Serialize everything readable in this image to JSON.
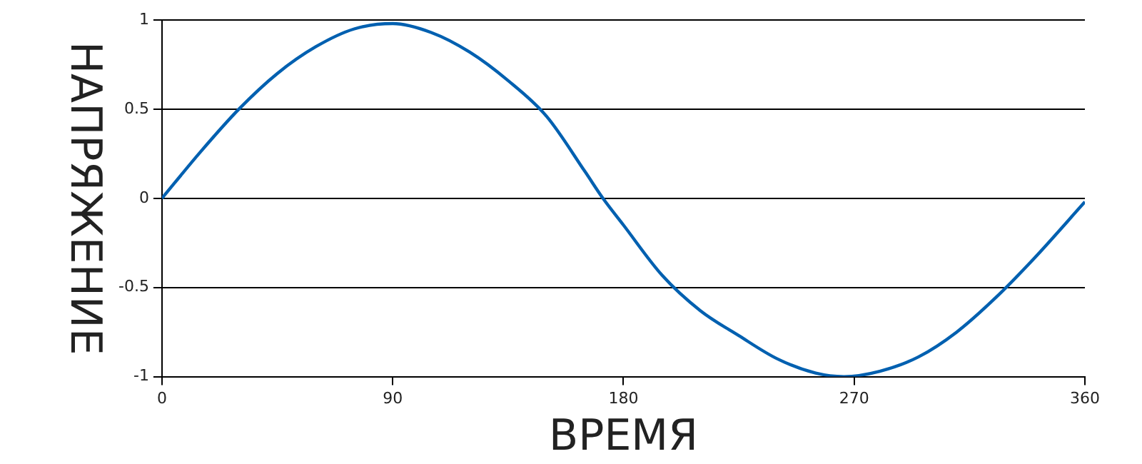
{
  "chart_data": {
    "type": "line",
    "xlabel": "ВРЕМЯ",
    "ylabel": "НАПРЯЖЕНИЕ",
    "x": [
      0,
      15,
      30,
      45,
      60,
      75,
      90,
      105,
      120,
      135,
      150,
      165,
      172,
      180,
      195,
      210,
      225,
      240,
      255,
      266,
      280,
      295,
      310,
      325,
      340,
      360
    ],
    "series": [
      {
        "color": "#0060b0",
        "values": [
          0,
          0.26,
          0.5,
          0.7,
          0.85,
          0.95,
          0.98,
          0.93,
          0.82,
          0.66,
          0.46,
          0.15,
          0,
          -0.15,
          -0.43,
          -0.63,
          -0.77,
          -0.9,
          -0.98,
          -1,
          -0.97,
          -0.89,
          -0.75,
          -0.56,
          -0.34,
          -0.02
        ]
      }
    ],
    "xlim": [
      0,
      360
    ],
    "xticks": [
      0,
      90,
      180,
      270,
      360
    ],
    "ylim": [
      -1,
      1
    ],
    "yticks": [
      -1,
      -0.5,
      0,
      0.5,
      1
    ],
    "grid": "y",
    "legend": false,
    "marker": "none",
    "line_style": "solid"
  }
}
